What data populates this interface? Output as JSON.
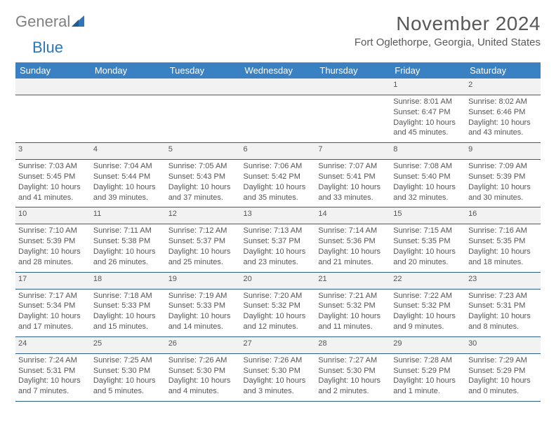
{
  "logo": {
    "text1": "General",
    "text2": "Blue",
    "accent": "#2e75b6",
    "gray": "#808080"
  },
  "title": {
    "month": "November 2024",
    "location": "Fort Oglethorpe, Georgia, United States"
  },
  "colors": {
    "header_bg": "#3a81c3",
    "header_text": "#ffffff",
    "row_divider": "#2e5f8a",
    "daynum_bg": "#f2f2f2",
    "body_text": "#555555"
  },
  "weekdays": [
    "Sunday",
    "Monday",
    "Tuesday",
    "Wednesday",
    "Thursday",
    "Friday",
    "Saturday"
  ],
  "weeks": [
    [
      null,
      null,
      null,
      null,
      null,
      {
        "n": "1",
        "sr": "8:01 AM",
        "ss": "6:47 PM",
        "dl": "10 hours and 45 minutes."
      },
      {
        "n": "2",
        "sr": "8:02 AM",
        "ss": "6:46 PM",
        "dl": "10 hours and 43 minutes."
      }
    ],
    [
      {
        "n": "3",
        "sr": "7:03 AM",
        "ss": "5:45 PM",
        "dl": "10 hours and 41 minutes."
      },
      {
        "n": "4",
        "sr": "7:04 AM",
        "ss": "5:44 PM",
        "dl": "10 hours and 39 minutes."
      },
      {
        "n": "5",
        "sr": "7:05 AM",
        "ss": "5:43 PM",
        "dl": "10 hours and 37 minutes."
      },
      {
        "n": "6",
        "sr": "7:06 AM",
        "ss": "5:42 PM",
        "dl": "10 hours and 35 minutes."
      },
      {
        "n": "7",
        "sr": "7:07 AM",
        "ss": "5:41 PM",
        "dl": "10 hours and 33 minutes."
      },
      {
        "n": "8",
        "sr": "7:08 AM",
        "ss": "5:40 PM",
        "dl": "10 hours and 32 minutes."
      },
      {
        "n": "9",
        "sr": "7:09 AM",
        "ss": "5:39 PM",
        "dl": "10 hours and 30 minutes."
      }
    ],
    [
      {
        "n": "10",
        "sr": "7:10 AM",
        "ss": "5:39 PM",
        "dl": "10 hours and 28 minutes."
      },
      {
        "n": "11",
        "sr": "7:11 AM",
        "ss": "5:38 PM",
        "dl": "10 hours and 26 minutes."
      },
      {
        "n": "12",
        "sr": "7:12 AM",
        "ss": "5:37 PM",
        "dl": "10 hours and 25 minutes."
      },
      {
        "n": "13",
        "sr": "7:13 AM",
        "ss": "5:37 PM",
        "dl": "10 hours and 23 minutes."
      },
      {
        "n": "14",
        "sr": "7:14 AM",
        "ss": "5:36 PM",
        "dl": "10 hours and 21 minutes."
      },
      {
        "n": "15",
        "sr": "7:15 AM",
        "ss": "5:35 PM",
        "dl": "10 hours and 20 minutes."
      },
      {
        "n": "16",
        "sr": "7:16 AM",
        "ss": "5:35 PM",
        "dl": "10 hours and 18 minutes."
      }
    ],
    [
      {
        "n": "17",
        "sr": "7:17 AM",
        "ss": "5:34 PM",
        "dl": "10 hours and 17 minutes."
      },
      {
        "n": "18",
        "sr": "7:18 AM",
        "ss": "5:33 PM",
        "dl": "10 hours and 15 minutes."
      },
      {
        "n": "19",
        "sr": "7:19 AM",
        "ss": "5:33 PM",
        "dl": "10 hours and 14 minutes."
      },
      {
        "n": "20",
        "sr": "7:20 AM",
        "ss": "5:32 PM",
        "dl": "10 hours and 12 minutes."
      },
      {
        "n": "21",
        "sr": "7:21 AM",
        "ss": "5:32 PM",
        "dl": "10 hours and 11 minutes."
      },
      {
        "n": "22",
        "sr": "7:22 AM",
        "ss": "5:32 PM",
        "dl": "10 hours and 9 minutes."
      },
      {
        "n": "23",
        "sr": "7:23 AM",
        "ss": "5:31 PM",
        "dl": "10 hours and 8 minutes."
      }
    ],
    [
      {
        "n": "24",
        "sr": "7:24 AM",
        "ss": "5:31 PM",
        "dl": "10 hours and 7 minutes."
      },
      {
        "n": "25",
        "sr": "7:25 AM",
        "ss": "5:30 PM",
        "dl": "10 hours and 5 minutes."
      },
      {
        "n": "26",
        "sr": "7:26 AM",
        "ss": "5:30 PM",
        "dl": "10 hours and 4 minutes."
      },
      {
        "n": "27",
        "sr": "7:26 AM",
        "ss": "5:30 PM",
        "dl": "10 hours and 3 minutes."
      },
      {
        "n": "28",
        "sr": "7:27 AM",
        "ss": "5:30 PM",
        "dl": "10 hours and 2 minutes."
      },
      {
        "n": "29",
        "sr": "7:28 AM",
        "ss": "5:29 PM",
        "dl": "10 hours and 1 minute."
      },
      {
        "n": "30",
        "sr": "7:29 AM",
        "ss": "5:29 PM",
        "dl": "10 hours and 0 minutes."
      }
    ]
  ],
  "labels": {
    "sunrise": "Sunrise: ",
    "sunset": "Sunset: ",
    "daylight": "Daylight: "
  }
}
